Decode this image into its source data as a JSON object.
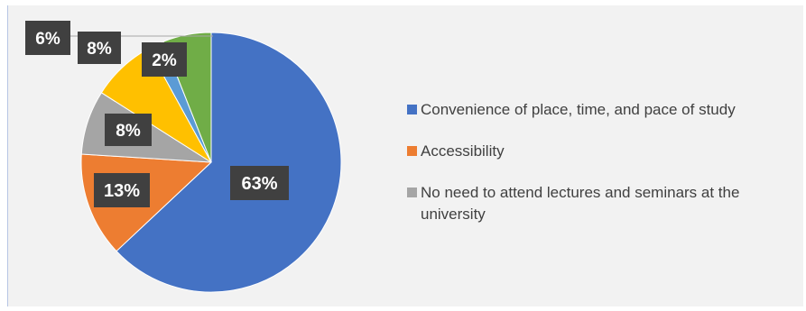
{
  "colors": {
    "background": "#f2f2f2",
    "label_box": "#404040",
    "label_text": "#ffffff",
    "leader_line": "#a6a6a6"
  },
  "chart_data": {
    "type": "pie",
    "title": "",
    "start_angle_deg": 0,
    "direction": "clockwise",
    "slices": [
      {
        "label": "Convenience of place, time, and pace of study",
        "value": 63,
        "display": "63%",
        "color": "#4472c4"
      },
      {
        "label": "Accessibility",
        "value": 13,
        "display": "13%",
        "color": "#ed7d31"
      },
      {
        "label": "No need to attend lectures and seminars at the university",
        "value": 8,
        "display": "8%",
        "color": "#a5a5a5"
      },
      {
        "label": "",
        "value": 8,
        "display": "8%",
        "color": "#ffc000"
      },
      {
        "label": "",
        "value": 2,
        "display": "2%",
        "color": "#5b9bd5"
      },
      {
        "label": "",
        "value": 6,
        "display": "6%",
        "color": "#70ad47"
      }
    ],
    "legend": {
      "position": "right",
      "entries": [
        "Convenience of place, time, and pace of study",
        "Accessibility",
        "No need to attend lectures and seminars at the university"
      ]
    }
  }
}
